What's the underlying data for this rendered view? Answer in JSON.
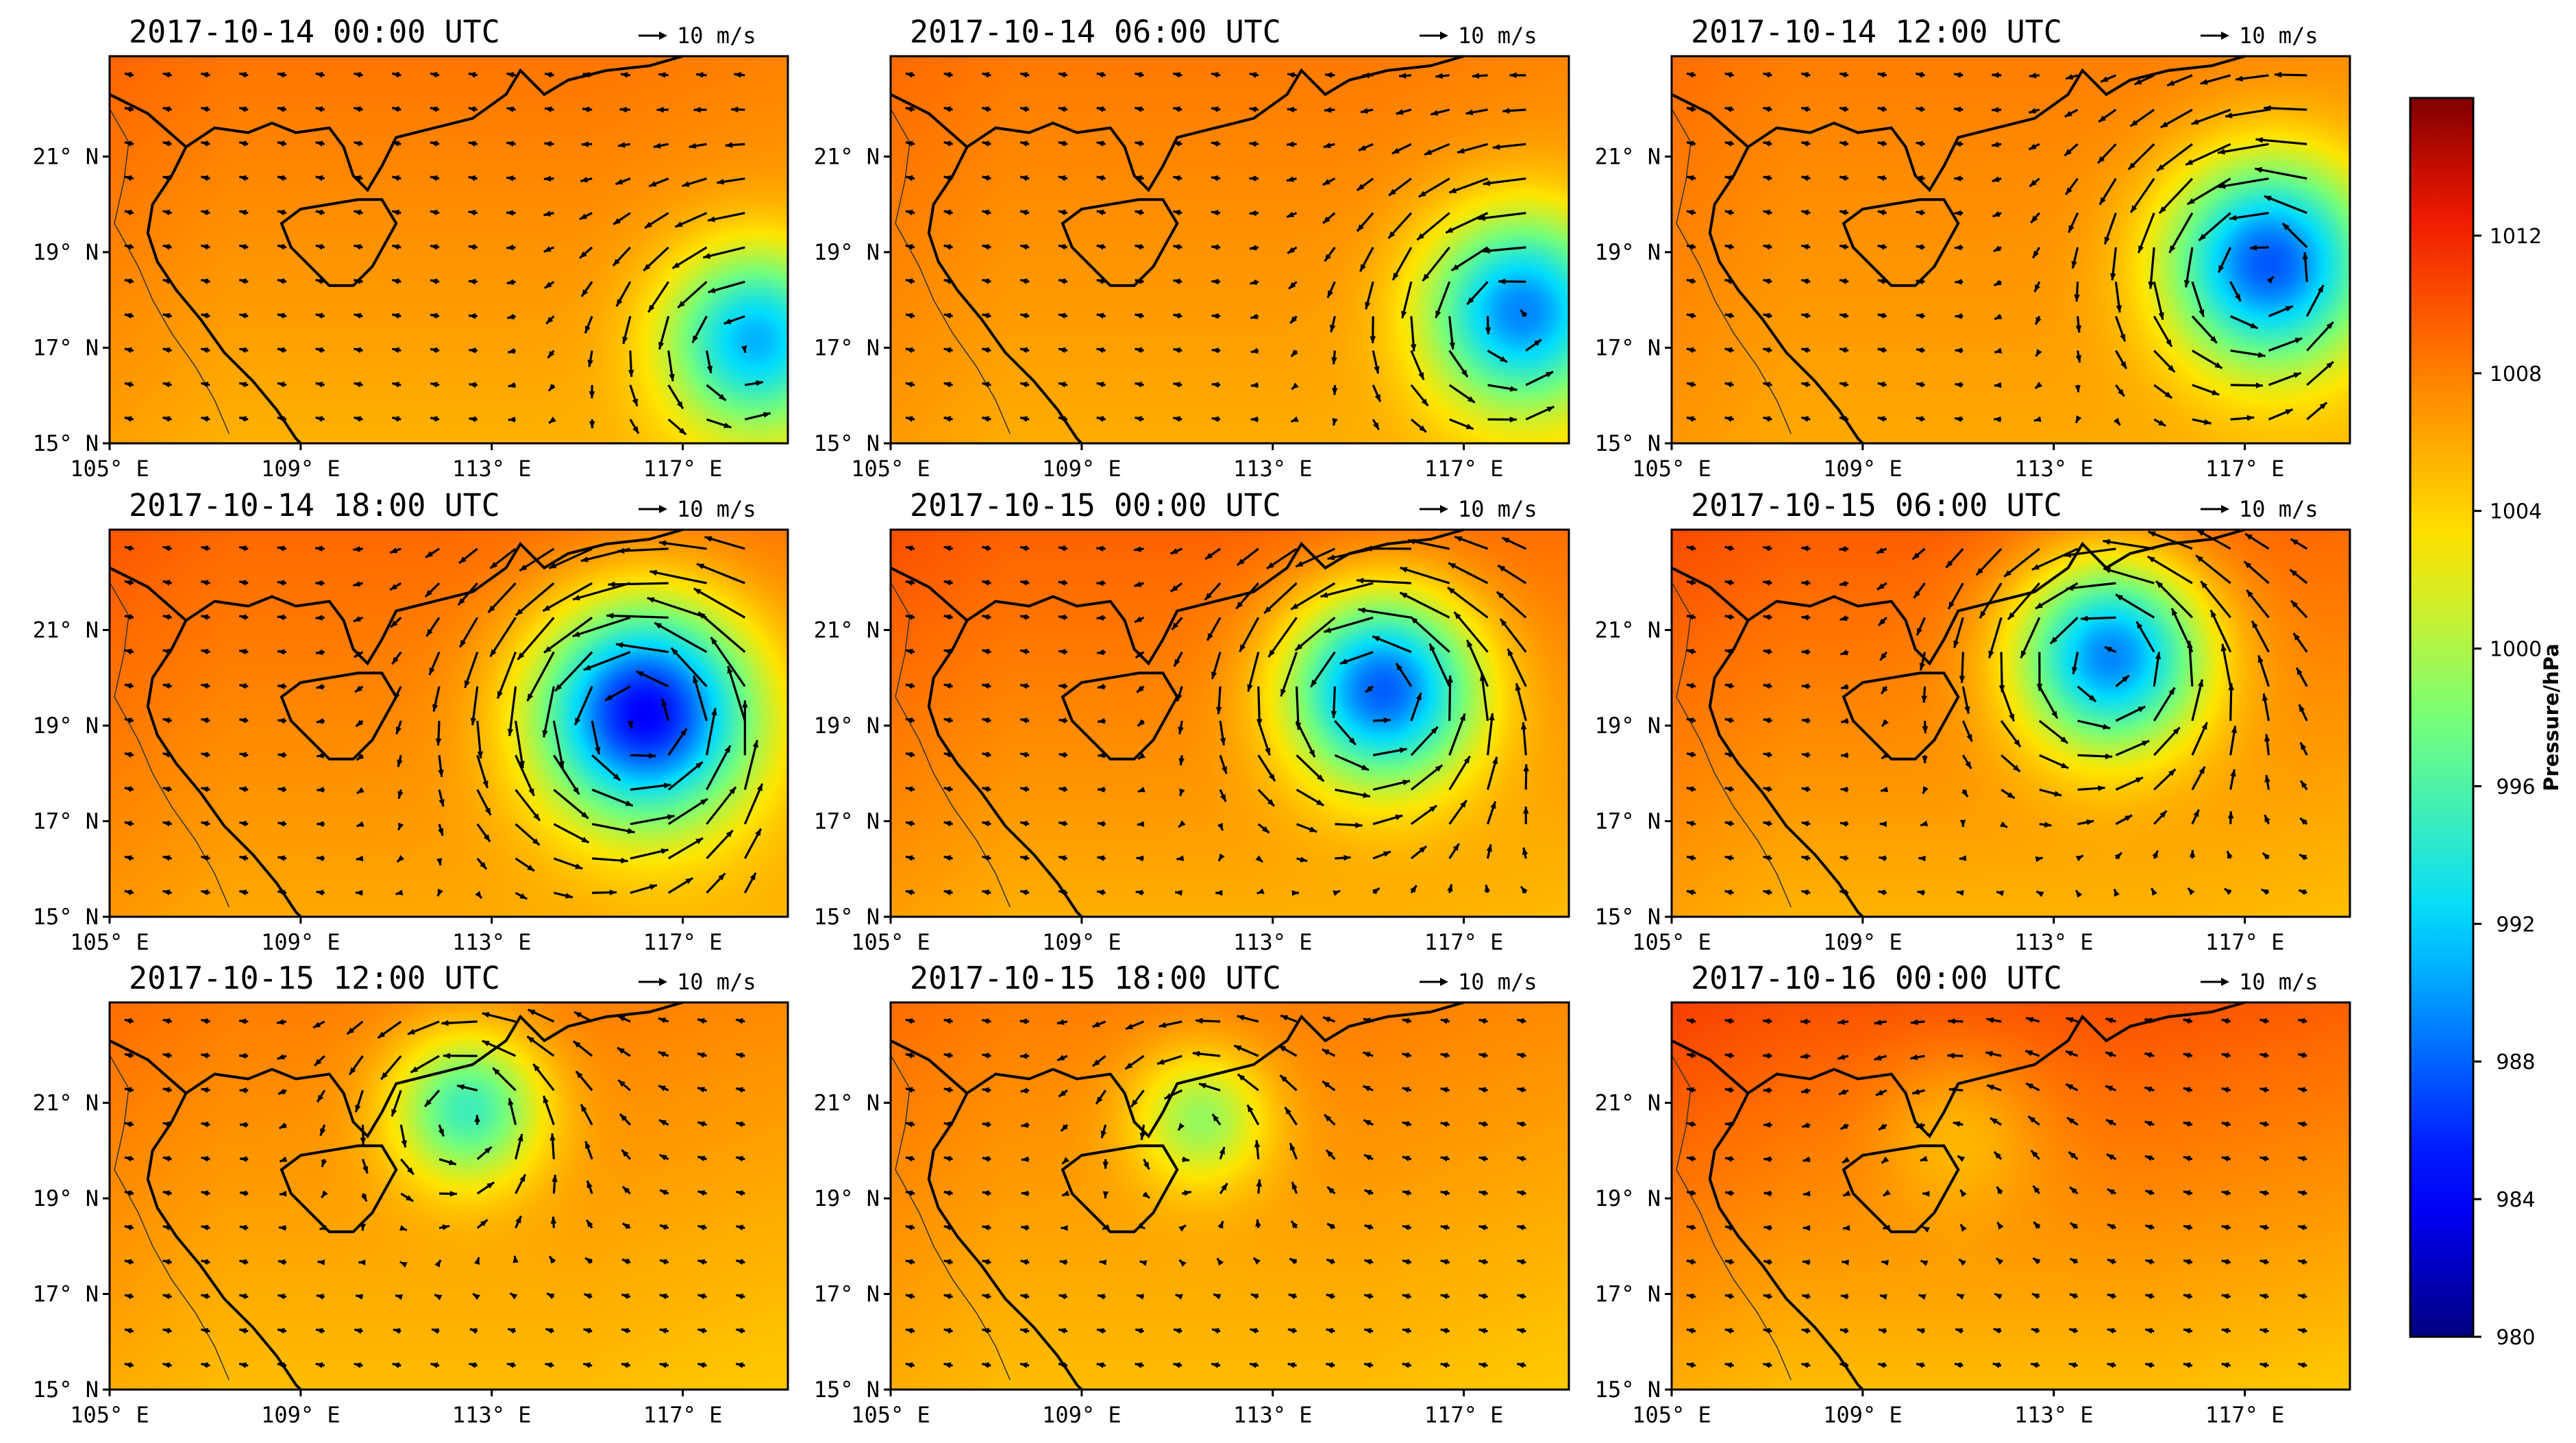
{
  "chart_data": {
    "type": "heatmap",
    "description_of_fields": "Filled pressure field with wind vectors, 3x3 panels over the South China Sea",
    "colorbar": {
      "label": "Pressure/hPa",
      "range": [
        980,
        1016
      ],
      "ticks": [
        "1012",
        "1008",
        "1004",
        "1000",
        "996",
        "992",
        "988",
        "984",
        "980"
      ],
      "colors": [
        "#00007f",
        "#0000ff",
        "#007fff",
        "#00ffff",
        "#7fff7f",
        "#ffff00",
        "#ff7f00",
        "#ff0000",
        "#7f0000"
      ]
    },
    "x_ticks": [
      "105° E",
      "109° E",
      "113° E",
      "117° E"
    ],
    "x_range": [
      105,
      119.2
    ],
    "y_ticks": [
      "21° N",
      "19° N",
      "17° N",
      "15° N"
    ],
    "y_range": [
      15,
      23.1
    ],
    "reference_vector": "10 m/s",
    "background_pressure": 1007,
    "panels": [
      {
        "title": "2017-10-14 00:00 UTC",
        "center": [
          118.5,
          17.2
        ],
        "depth": 15,
        "radius": 1.3,
        "bg": 1007,
        "ne": 1.4
      },
      {
        "title": "2017-10-14 06:00 UTC",
        "center": [
          118.2,
          17.8
        ],
        "depth": 17,
        "radius": 1.4,
        "bg": 1007,
        "ne": 1.2
      },
      {
        "title": "2017-10-14 12:00 UTC",
        "center": [
          117.5,
          18.8
        ],
        "depth": 19,
        "radius": 1.5,
        "bg": 1007,
        "ne": 1.0
      },
      {
        "title": "2017-10-14 18:00 UTC",
        "center": [
          116.2,
          19.3
        ],
        "depth": 23,
        "radius": 1.6,
        "bg": 1007.5,
        "ne": 1.5
      },
      {
        "title": "2017-10-15 00:00 UTC",
        "center": [
          115.3,
          19.8
        ],
        "depth": 20,
        "radius": 1.4,
        "bg": 1007.5,
        "ne": 1.8
      },
      {
        "title": "2017-10-15 06:00 UTC",
        "center": [
          114.2,
          20.5
        ],
        "depth": 19,
        "radius": 1.4,
        "bg": 1007.5,
        "ne": 2.0
      },
      {
        "title": "2017-10-15 12:00 UTC",
        "center": [
          112.5,
          20.9
        ],
        "depth": 12,
        "radius": 1.1,
        "bg": 1006.5,
        "ne": 1.5
      },
      {
        "title": "2017-10-15 18:00 UTC",
        "center": [
          111.5,
          20.7
        ],
        "depth": 8,
        "radius": 1.0,
        "bg": 1006.5,
        "ne": 1.5
      },
      {
        "title": "2017-10-16 00:00 UTC",
        "center": [
          111.0,
          20.4
        ],
        "depth": 3,
        "radius": 1.2,
        "bg": 1007.5,
        "ne": 2.5
      }
    ]
  }
}
